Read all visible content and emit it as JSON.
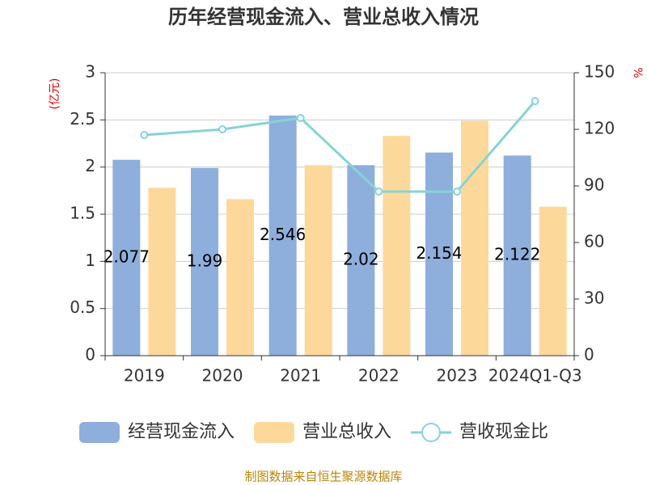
{
  "chart_data": {
    "type": "bar",
    "title": "历年经营现金流入、营业总收入情况",
    "y_label": "(亿元)",
    "y2_label": "%",
    "categories": [
      "2019",
      "2020",
      "2021",
      "2022",
      "2023",
      "2024Q1-Q3"
    ],
    "series": [
      {
        "name": "经营现金流入",
        "type": "bar",
        "color": "#8eaedb",
        "values": [
          2.077,
          1.99,
          2.546,
          2.02,
          2.154,
          2.122
        ],
        "show_labels": true
      },
      {
        "name": "营业总收入",
        "type": "bar",
        "color": "#fdd89b",
        "values": [
          1.78,
          1.66,
          2.02,
          2.33,
          2.49,
          1.58
        ]
      },
      {
        "name": "营收现金比",
        "type": "line",
        "axis": "y2",
        "color": "#86d3d6",
        "values": [
          117,
          120,
          126,
          87,
          87,
          135
        ]
      }
    ],
    "ylim": [
      0,
      3
    ],
    "yticks": [
      0,
      0.5,
      1,
      1.5,
      2,
      2.5,
      3
    ],
    "y2lim": [
      0,
      150
    ],
    "y2ticks": [
      0,
      30,
      60,
      90,
      120,
      150
    ],
    "grid": true,
    "legend": "bottom",
    "source": "制图数据来自恒生聚源数据库"
  }
}
